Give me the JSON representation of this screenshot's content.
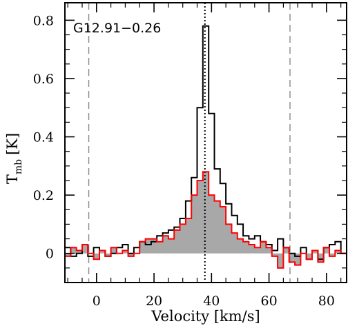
{
  "chart_data": {
    "type": "line",
    "title": "",
    "annotation": "G12.91−0.26",
    "xlabel": "Velocity [km/s]",
    "ylabel_main": "T",
    "ylabel_sub": "mb",
    "ylabel_unit": "[K]",
    "xlim": [
      -11,
      87
    ],
    "ylim": [
      -0.1,
      0.86
    ],
    "xticks": [
      0,
      20,
      40,
      60,
      80
    ],
    "xtick_labels": [
      "0",
      "20",
      "40",
      "60",
      "80"
    ],
    "yticks": [
      0,
      0.2,
      0.4,
      0.6,
      0.8
    ],
    "ytick_labels": [
      "0",
      "0.2",
      "0.4",
      "0.6",
      "0.8"
    ],
    "grid": false,
    "vlines": [
      {
        "x": -2.7,
        "style": "dashed",
        "color": "#888888"
      },
      {
        "x": 67.3,
        "style": "dashed",
        "color": "#888888"
      },
      {
        "x": 37.7,
        "style": "dotted",
        "color": "#000000"
      }
    ],
    "step_width": 2,
    "series": [
      {
        "color": "#000000",
        "style": "step",
        "x": [
          -12,
          -10,
          -8,
          -6,
          -4,
          -2,
          0,
          2,
          4,
          6,
          8,
          10,
          12,
          14,
          16,
          18,
          20,
          22,
          24,
          26,
          28,
          30,
          32,
          34,
          36,
          38,
          40,
          42,
          44,
          46,
          48,
          50,
          52,
          54,
          56,
          58,
          60,
          62,
          64,
          66,
          68,
          70,
          72,
          74,
          76,
          78,
          80,
          82,
          84,
          86
        ],
        "values": [
          0.01,
          0.02,
          -0.01,
          0.0,
          0.03,
          -0.01,
          0.02,
          0.01,
          -0.01,
          0.0,
          0.02,
          0.03,
          0.0,
          0.02,
          0.04,
          0.03,
          0.04,
          0.06,
          0.07,
          0.08,
          0.09,
          0.12,
          0.18,
          0.26,
          0.5,
          0.78,
          0.48,
          0.29,
          0.24,
          0.17,
          0.13,
          0.1,
          0.06,
          0.05,
          0.06,
          0.04,
          0.03,
          0.01,
          0.05,
          0.02,
          0.0,
          -0.01,
          0.02,
          -0.02,
          0.01,
          -0.02,
          0.02,
          0.03,
          0.04,
          0.0
        ]
      },
      {
        "color": "#ff0000",
        "style": "step-filled",
        "fill": "#a8a8a8",
        "x": [
          -12,
          -10,
          -8,
          -6,
          -4,
          -2,
          0,
          2,
          4,
          6,
          8,
          10,
          12,
          14,
          16,
          18,
          20,
          22,
          24,
          26,
          28,
          30,
          32,
          34,
          36,
          38,
          40,
          42,
          44,
          46,
          48,
          50,
          52,
          54,
          56,
          58,
          60,
          62,
          64,
          66,
          68,
          70,
          72,
          74,
          76,
          78,
          80,
          82,
          84,
          86
        ],
        "values": [
          0.03,
          -0.01,
          0.02,
          0.01,
          0.03,
          0.0,
          -0.02,
          0.01,
          -0.01,
          0.02,
          0.0,
          0.01,
          -0.01,
          0.0,
          0.04,
          0.05,
          0.05,
          0.04,
          0.06,
          0.05,
          0.08,
          0.1,
          0.12,
          0.2,
          0.25,
          0.28,
          0.2,
          0.18,
          0.16,
          0.1,
          0.07,
          0.05,
          0.04,
          0.03,
          0.02,
          0.04,
          0.02,
          -0.01,
          -0.05,
          0.02,
          -0.03,
          -0.04,
          0.0,
          -0.02,
          0.01,
          -0.03,
          0.02,
          -0.01,
          0.01,
          0.0
        ]
      }
    ]
  }
}
